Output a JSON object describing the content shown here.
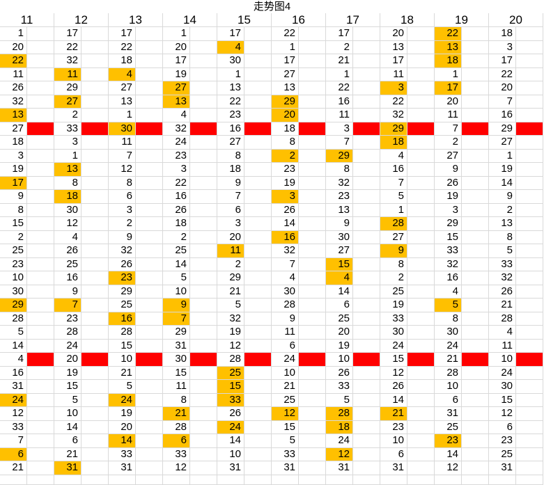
{
  "title": "走势图4",
  "columns": [
    "11",
    "12",
    "13",
    "14",
    "15",
    "16",
    "17",
    "18",
    "19",
    "20"
  ],
  "colors": {
    "highlight": "#ffc000",
    "separator": "#ff0000",
    "grid": "#d9d9d9"
  },
  "rows": [
    [
      "1",
      "17",
      "17",
      "1",
      "17",
      "22",
      "17",
      "20",
      "22",
      "18"
    ],
    [
      "20",
      "22",
      "22",
      "20",
      "4",
      "1",
      "2",
      "13",
      "13",
      "3"
    ],
    [
      "22",
      "32",
      "18",
      "17",
      "30",
      "17",
      "21",
      "17",
      "18",
      "17"
    ],
    [
      "11",
      "11",
      "4",
      "19",
      "1",
      "27",
      "1",
      "11",
      "1",
      "22"
    ],
    [
      "26",
      "29",
      "27",
      "27",
      "13",
      "13",
      "22",
      "3",
      "17",
      "20"
    ],
    [
      "32",
      "27",
      "13",
      "13",
      "22",
      "29",
      "16",
      "22",
      "20",
      "7"
    ],
    [
      "13",
      "2",
      "1",
      "4",
      "23",
      "20",
      "11",
      "32",
      "11",
      "16"
    ],
    [
      "27",
      "33",
      "30",
      "32",
      "16",
      "18",
      "3",
      "29",
      "7",
      "29"
    ],
    [
      "18",
      "3",
      "11",
      "24",
      "27",
      "8",
      "7",
      "18",
      "2",
      "27"
    ],
    [
      "3",
      "1",
      "7",
      "23",
      "8",
      "2",
      "29",
      "4",
      "27",
      "1"
    ],
    [
      "19",
      "13",
      "12",
      "3",
      "18",
      "23",
      "8",
      "16",
      "9",
      "19"
    ],
    [
      "17",
      "8",
      "8",
      "22",
      "9",
      "19",
      "32",
      "7",
      "26",
      "14"
    ],
    [
      "9",
      "18",
      "6",
      "16",
      "7",
      "3",
      "23",
      "5",
      "19",
      "9"
    ],
    [
      "8",
      "30",
      "3",
      "26",
      "6",
      "26",
      "13",
      "1",
      "3",
      "2"
    ],
    [
      "15",
      "12",
      "2",
      "18",
      "3",
      "14",
      "9",
      "28",
      "29",
      "13"
    ],
    [
      "2",
      "4",
      "9",
      "2",
      "20",
      "16",
      "30",
      "27",
      "15",
      "8"
    ],
    [
      "25",
      "26",
      "32",
      "25",
      "11",
      "32",
      "27",
      "9",
      "33",
      "5"
    ],
    [
      "23",
      "25",
      "26",
      "14",
      "2",
      "7",
      "15",
      "8",
      "32",
      "33"
    ],
    [
      "10",
      "16",
      "23",
      "5",
      "29",
      "4",
      "4",
      "2",
      "16",
      "32"
    ],
    [
      "30",
      "9",
      "29",
      "10",
      "21",
      "30",
      "14",
      "25",
      "4",
      "26"
    ],
    [
      "29",
      "7",
      "25",
      "9",
      "5",
      "28",
      "6",
      "19",
      "5",
      "21"
    ],
    [
      "28",
      "23",
      "16",
      "7",
      "32",
      "9",
      "25",
      "33",
      "8",
      "28"
    ],
    [
      "5",
      "28",
      "28",
      "29",
      "19",
      "11",
      "20",
      "30",
      "30",
      "4"
    ],
    [
      "14",
      "24",
      "15",
      "31",
      "12",
      "6",
      "19",
      "24",
      "24",
      "11"
    ],
    [
      "4",
      "20",
      "10",
      "30",
      "28",
      "24",
      "10",
      "15",
      "21",
      "10"
    ],
    [
      "16",
      "19",
      "21",
      "15",
      "25",
      "10",
      "26",
      "12",
      "28",
      "24"
    ],
    [
      "31",
      "15",
      "5",
      "11",
      "15",
      "21",
      "33",
      "26",
      "10",
      "30"
    ],
    [
      "24",
      "5",
      "24",
      "8",
      "33",
      "25",
      "5",
      "14",
      "6",
      "15"
    ],
    [
      "12",
      "10",
      "19",
      "21",
      "26",
      "12",
      "28",
      "21",
      "31",
      "12"
    ],
    [
      "33",
      "14",
      "20",
      "28",
      "24",
      "15",
      "18",
      "23",
      "25",
      "6"
    ],
    [
      "7",
      "6",
      "14",
      "6",
      "14",
      "5",
      "24",
      "10",
      "23",
      "23"
    ],
    [
      "6",
      "21",
      "33",
      "33",
      "10",
      "33",
      "12",
      "6",
      "14",
      "25"
    ],
    [
      "21",
      "31",
      "31",
      "12",
      "31",
      "31",
      "31",
      "31",
      "12",
      "31"
    ]
  ],
  "highlights": [
    [
      0,
      8
    ],
    [
      1,
      4
    ],
    [
      1,
      8
    ],
    [
      2,
      0
    ],
    [
      2,
      8
    ],
    [
      3,
      1
    ],
    [
      3,
      2
    ],
    [
      4,
      3
    ],
    [
      4,
      7
    ],
    [
      4,
      8
    ],
    [
      5,
      1
    ],
    [
      5,
      3
    ],
    [
      5,
      5
    ],
    [
      6,
      0
    ],
    [
      6,
      5
    ],
    [
      7,
      2
    ],
    [
      7,
      7
    ],
    [
      8,
      7
    ],
    [
      9,
      5
    ],
    [
      9,
      6
    ],
    [
      10,
      1
    ],
    [
      11,
      0
    ],
    [
      12,
      1
    ],
    [
      12,
      5
    ],
    [
      14,
      7
    ],
    [
      15,
      5
    ],
    [
      16,
      4
    ],
    [
      16,
      7
    ],
    [
      17,
      6
    ],
    [
      18,
      2
    ],
    [
      18,
      6
    ],
    [
      20,
      0
    ],
    [
      20,
      1
    ],
    [
      20,
      3
    ],
    [
      20,
      8
    ],
    [
      21,
      2
    ],
    [
      21,
      3
    ],
    [
      25,
      4
    ],
    [
      26,
      4
    ],
    [
      27,
      0
    ],
    [
      27,
      2
    ],
    [
      27,
      4
    ],
    [
      28,
      3
    ],
    [
      28,
      5
    ],
    [
      28,
      6
    ],
    [
      28,
      7
    ],
    [
      29,
      4
    ],
    [
      29,
      6
    ],
    [
      30,
      2
    ],
    [
      30,
      3
    ],
    [
      30,
      8
    ],
    [
      31,
      0
    ],
    [
      31,
      6
    ],
    [
      32,
      1
    ]
  ],
  "separator_rows": [
    7,
    24
  ]
}
